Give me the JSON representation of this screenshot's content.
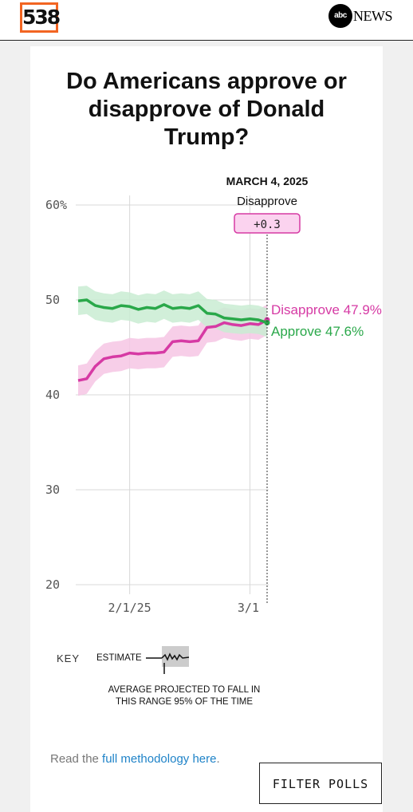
{
  "header": {
    "logo_text": "538",
    "abc_circle": "abc",
    "abc_news": "NEWS"
  },
  "page": {
    "title_lines": [
      "Do Americans approve or",
      "disapprove of Donald",
      "Trump?"
    ],
    "hover": {
      "date": "MARCH 4, 2025",
      "label": "Disapprove",
      "margin": "+0.3"
    },
    "key": {
      "label": "KEY",
      "estimate": "ESTIMATE",
      "note": "AVERAGE PROJECTED TO FALL IN THIS RANGE 95% OF THE TIME"
    },
    "methodology": {
      "prefix": "Read the ",
      "link": "full methodology here",
      "suffix": "."
    },
    "filter_button": "FILTER POLLS"
  },
  "colors": {
    "disapprove": "#d63aa4",
    "approve": "#2aa84a",
    "disapprove_band": "#f6c6e4",
    "approve_band": "#c9ecd2",
    "logo_orange": "#f26522",
    "link": "#1f83c8"
  },
  "chart_data": {
    "type": "line",
    "x_tick_labels": [
      "2/1/25",
      "3/1"
    ],
    "y_tick_labels": [
      "60%",
      "50",
      "40",
      "30",
      "20"
    ],
    "ylim": [
      20,
      60
    ],
    "grid": true,
    "x": [
      "1/20/25",
      "1/22/25",
      "1/24/25",
      "1/26/25",
      "1/28/25",
      "1/30/25",
      "2/1/25",
      "2/3/25",
      "2/5/25",
      "2/7/25",
      "2/9/25",
      "2/11/25",
      "2/13/25",
      "2/15/25",
      "2/17/25",
      "2/19/25",
      "2/21/25",
      "2/23/25",
      "2/25/25",
      "2/27/25",
      "3/1/25",
      "3/3/25",
      "3/4/25"
    ],
    "series": [
      {
        "name": "Disapprove",
        "current_label": "Disapprove 47.9%",
        "values": [
          41.5,
          41.7,
          43.0,
          43.8,
          44.0,
          44.1,
          44.4,
          44.3,
          44.4,
          44.4,
          44.5,
          45.6,
          45.7,
          45.6,
          45.7,
          47.1,
          47.2,
          47.6,
          47.4,
          47.3,
          47.5,
          47.4,
          47.9
        ]
      },
      {
        "name": "Approve",
        "current_label": "Approve 47.6%",
        "values": [
          49.9,
          50.0,
          49.4,
          49.2,
          49.1,
          49.4,
          49.3,
          49.0,
          49.2,
          49.1,
          49.5,
          49.1,
          49.2,
          49.1,
          49.4,
          48.6,
          48.5,
          48.1,
          48.0,
          47.9,
          48.0,
          47.9,
          47.6
        ]
      }
    ]
  }
}
